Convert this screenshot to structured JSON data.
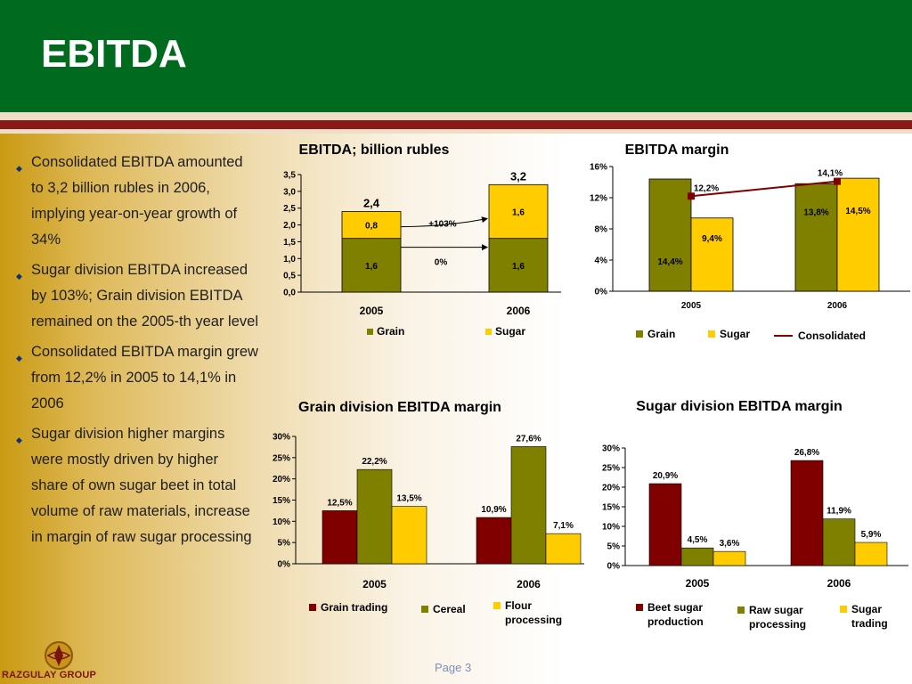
{
  "slide": {
    "title": "EBITDA",
    "page_label": "Page 3",
    "company": "RAZGULAY GROUP"
  },
  "bullets": [
    "Consolidated EBITDA amounted to 3,2 billion rubles in 2006, implying year-on-year growth of 34%",
    "Sugar division EBITDA increased by 103%; Grain division EBITDA remained on the 2005-th year level",
    "Consolidated EBITDA margin grew from 12,2% in 2005 to 14,1% in 2006",
    "Sugar division higher margins were mostly driven by higher share of own sugar beet in total volume of raw materials, increase in margin of raw sugar processing"
  ],
  "colors": {
    "header_green": "#006a1e",
    "stripe_red": "#8a1a1a",
    "grain": "#7f7f00",
    "sugar": "#ffcc00",
    "dark_red": "#800000",
    "bullet": "#0a3278"
  },
  "chart_data": [
    {
      "type": "bar",
      "stacked": true,
      "title": "EBITDA; billion rubles",
      "categories": [
        "2005",
        "2006"
      ],
      "series": [
        {
          "name": "Grain",
          "values": [
            1.6,
            1.6
          ],
          "labels": [
            "1,6",
            "1,6"
          ],
          "color": "#7f7f00"
        },
        {
          "name": "Sugar",
          "values": [
            0.8,
            1.6
          ],
          "labels": [
            "0,8",
            "1,6"
          ],
          "color": "#ffcc00"
        }
      ],
      "totals": [
        "2,4",
        "3,2"
      ],
      "annotations": [
        {
          "text": "+103%",
          "series": "Sugar"
        },
        {
          "text": "0%",
          "series": "Grain"
        }
      ],
      "ylim": [
        0,
        3.5
      ],
      "yticks": [
        0,
        0.5,
        1,
        1.5,
        2,
        2.5,
        3,
        3.5
      ],
      "yticklabels": [
        "0,0",
        "0,5",
        "1,0",
        "1,5",
        "2,0",
        "2,5",
        "3,0",
        "3,5"
      ],
      "legend": "bottom"
    },
    {
      "type": "bar",
      "title": "EBITDA margin",
      "categories": [
        "2005",
        "2006"
      ],
      "series": [
        {
          "name": "Grain",
          "values": [
            14.4,
            13.8
          ],
          "labels": [
            "14,4%",
            "13,8%"
          ],
          "color": "#7f7f00"
        },
        {
          "name": "Sugar",
          "values": [
            9.4,
            14.5
          ],
          "labels": [
            "9,4%",
            "14,5%"
          ],
          "color": "#ffcc00"
        }
      ],
      "line_series": {
        "name": "Consolidated",
        "values": [
          12.2,
          14.1
        ],
        "labels": [
          "12,2%",
          "14,1%"
        ],
        "color": "#800000"
      },
      "ylim": [
        0,
        16
      ],
      "yticks": [
        0,
        4,
        8,
        12,
        16
      ],
      "yticklabels": [
        "0%",
        "4%",
        "8%",
        "12%",
        "16%"
      ],
      "legend": "bottom"
    },
    {
      "type": "bar",
      "title": "Grain division EBITDA margin",
      "categories": [
        "2005",
        "2006"
      ],
      "series": [
        {
          "name": "Grain trading",
          "values": [
            12.5,
            10.9
          ],
          "labels": [
            "12,5%",
            "10,9%"
          ],
          "color": "#800000"
        },
        {
          "name": "Cereal",
          "values": [
            22.2,
            27.6
          ],
          "labels": [
            "22,2%",
            "27,6%"
          ],
          "color": "#7f7f00"
        },
        {
          "name": "Flour processing",
          "values": [
            13.5,
            7.1
          ],
          "labels": [
            "13,5%",
            "7,1%"
          ],
          "color": "#ffcc00"
        }
      ],
      "ylim": [
        0,
        30
      ],
      "yticks": [
        0,
        5,
        10,
        15,
        20,
        25,
        30
      ],
      "yticklabels": [
        "0%",
        "5%",
        "10%",
        "15%",
        "20%",
        "25%",
        "30%"
      ],
      "legend": "bottom"
    },
    {
      "type": "bar",
      "title": "Sugar division EBITDA margin",
      "categories": [
        "2005",
        "2006"
      ],
      "series": [
        {
          "name": "Beet sugar production",
          "values": [
            20.9,
            26.8
          ],
          "labels": [
            "20,9%",
            "26,8%"
          ],
          "color": "#800000"
        },
        {
          "name": "Raw sugar processing",
          "values": [
            4.5,
            11.9
          ],
          "labels": [
            "4,5%",
            "11,9%"
          ],
          "color": "#7f7f00"
        },
        {
          "name": "Sugar trading",
          "values": [
            3.6,
            5.9
          ],
          "labels": [
            "3,6%",
            "5,9%"
          ],
          "color": "#ffcc00"
        }
      ],
      "ylim": [
        0,
        30
      ],
      "yticks": [
        0,
        5,
        10,
        15,
        20,
        25,
        30
      ],
      "yticklabels": [
        "0%",
        "5%",
        "10%",
        "15%",
        "20%",
        "25%",
        "30%"
      ],
      "legend": "bottom"
    }
  ]
}
